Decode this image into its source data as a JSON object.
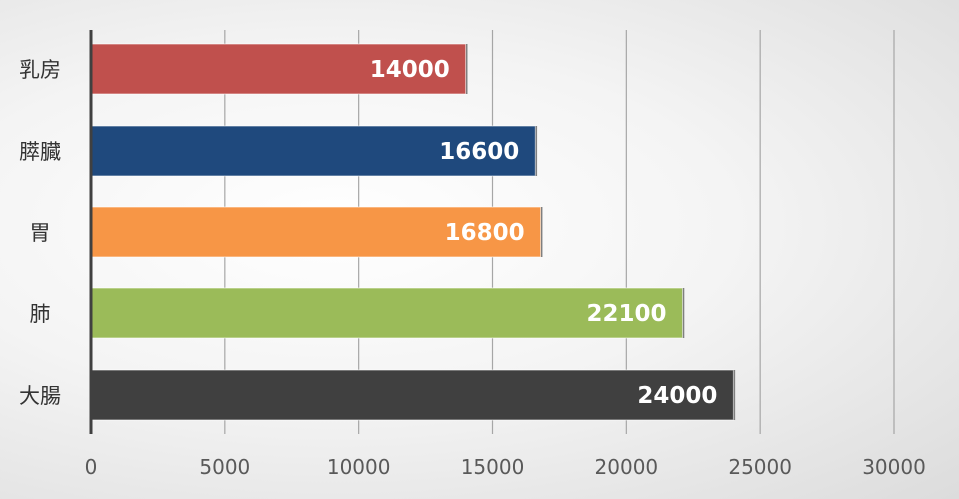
{
  "chart_data": {
    "type": "bar",
    "orientation": "horizontal",
    "categories": [
      "乳房",
      "膵臓",
      "胃",
      "肺",
      "大腸"
    ],
    "values": [
      14000,
      16600,
      16800,
      22100,
      24000
    ],
    "colors": [
      "#c0504d",
      "#1f497d",
      "#f79646",
      "#9bbb59",
      "#404040"
    ],
    "xlim": [
      0,
      30000
    ],
    "xticks": [
      0,
      5000,
      10000,
      15000,
      20000,
      25000,
      30000
    ],
    "grid": true,
    "title": "",
    "xlabel": "",
    "ylabel": ""
  }
}
